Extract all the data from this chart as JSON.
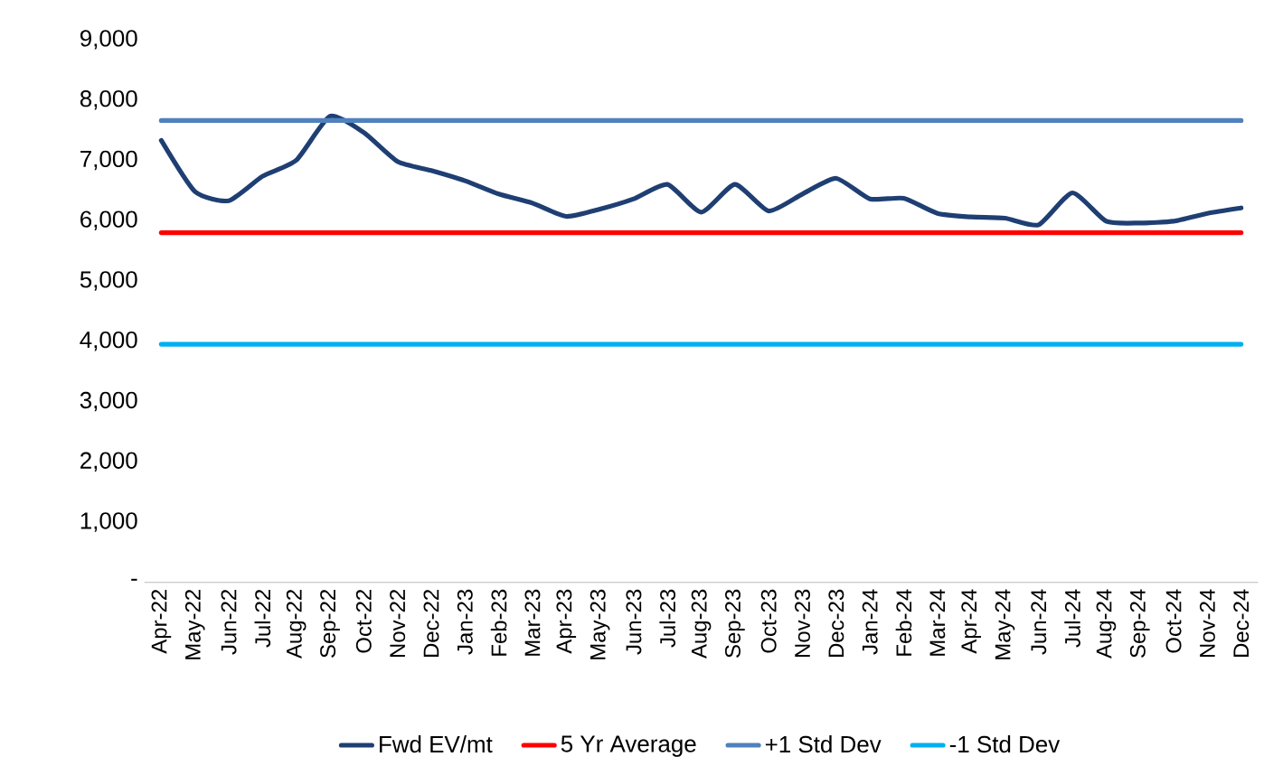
{
  "chart_data": {
    "type": "line",
    "categories": [
      "Apr-22",
      "May-22",
      "Jun-22",
      "Jul-22",
      "Aug-22",
      "Sep-22",
      "Oct-22",
      "Nov-22",
      "Dec-22",
      "Jan-23",
      "Feb-23",
      "Mar-23",
      "Apr-23",
      "May-23",
      "Jun-23",
      "Jul-23",
      "Aug-23",
      "Sep-23",
      "Oct-23",
      "Nov-23",
      "Dec-23",
      "Jan-24",
      "Feb-24",
      "Mar-24",
      "Apr-24",
      "May-24",
      "Jun-24",
      "Jul-24",
      "Aug-24",
      "Sep-24",
      "Oct-24",
      "Nov-24",
      "Dec-24"
    ],
    "series": [
      {
        "name": "Fwd EV/mt",
        "color": "#1f3f73",
        "values": [
          7330,
          6480,
          6330,
          6735,
          7000,
          7730,
          7460,
          6980,
          6830,
          6660,
          6440,
          6290,
          6070,
          6190,
          6360,
          6600,
          6140,
          6600,
          6160,
          6440,
          6700,
          6360,
          6370,
          6120,
          6060,
          6040,
          5930,
          6460,
          5990,
          5960,
          5990,
          6120,
          6210
        ]
      },
      {
        "name": "5 Yr Average",
        "color": "#ff0000",
        "values": [
          5800,
          5800,
          5800,
          5800,
          5800,
          5800,
          5800,
          5800,
          5800,
          5800,
          5800,
          5800,
          5800,
          5800,
          5800,
          5800,
          5800,
          5800,
          5800,
          5800,
          5800,
          5800,
          5800,
          5800,
          5800,
          5800,
          5800,
          5800,
          5800,
          5800,
          5800,
          5800,
          5800
        ]
      },
      {
        "name": "+1 Std Dev",
        "color": "#4f81bd",
        "values": [
          7660,
          7660,
          7660,
          7660,
          7660,
          7660,
          7660,
          7660,
          7660,
          7660,
          7660,
          7660,
          7660,
          7660,
          7660,
          7660,
          7660,
          7660,
          7660,
          7660,
          7660,
          7660,
          7660,
          7660,
          7660,
          7660,
          7660,
          7660,
          7660,
          7660,
          7660,
          7660,
          7660
        ]
      },
      {
        "name": "-1 Std Dev",
        "color": "#00b0f0",
        "values": [
          3950,
          3950,
          3950,
          3950,
          3950,
          3950,
          3950,
          3950,
          3950,
          3950,
          3950,
          3950,
          3950,
          3950,
          3950,
          3950,
          3950,
          3950,
          3950,
          3950,
          3950,
          3950,
          3950,
          3950,
          3950,
          3950,
          3950,
          3950,
          3950,
          3950,
          3950,
          3950,
          3950
        ]
      }
    ],
    "ylim": [
      0,
      9000
    ],
    "yticks": [
      {
        "value": 0,
        "label": "-"
      },
      {
        "value": 1000,
        "label": "1,000"
      },
      {
        "value": 2000,
        "label": "2,000"
      },
      {
        "value": 3000,
        "label": "3,000"
      },
      {
        "value": 4000,
        "label": "4,000"
      },
      {
        "value": 5000,
        "label": "5,000"
      },
      {
        "value": 6000,
        "label": "6,000"
      },
      {
        "value": 7000,
        "label": "7,000"
      },
      {
        "value": 8000,
        "label": "8,000"
      },
      {
        "value": 9000,
        "label": "9,000"
      }
    ],
    "legend": "bottom",
    "marker": "none",
    "line_style": "solid"
  }
}
